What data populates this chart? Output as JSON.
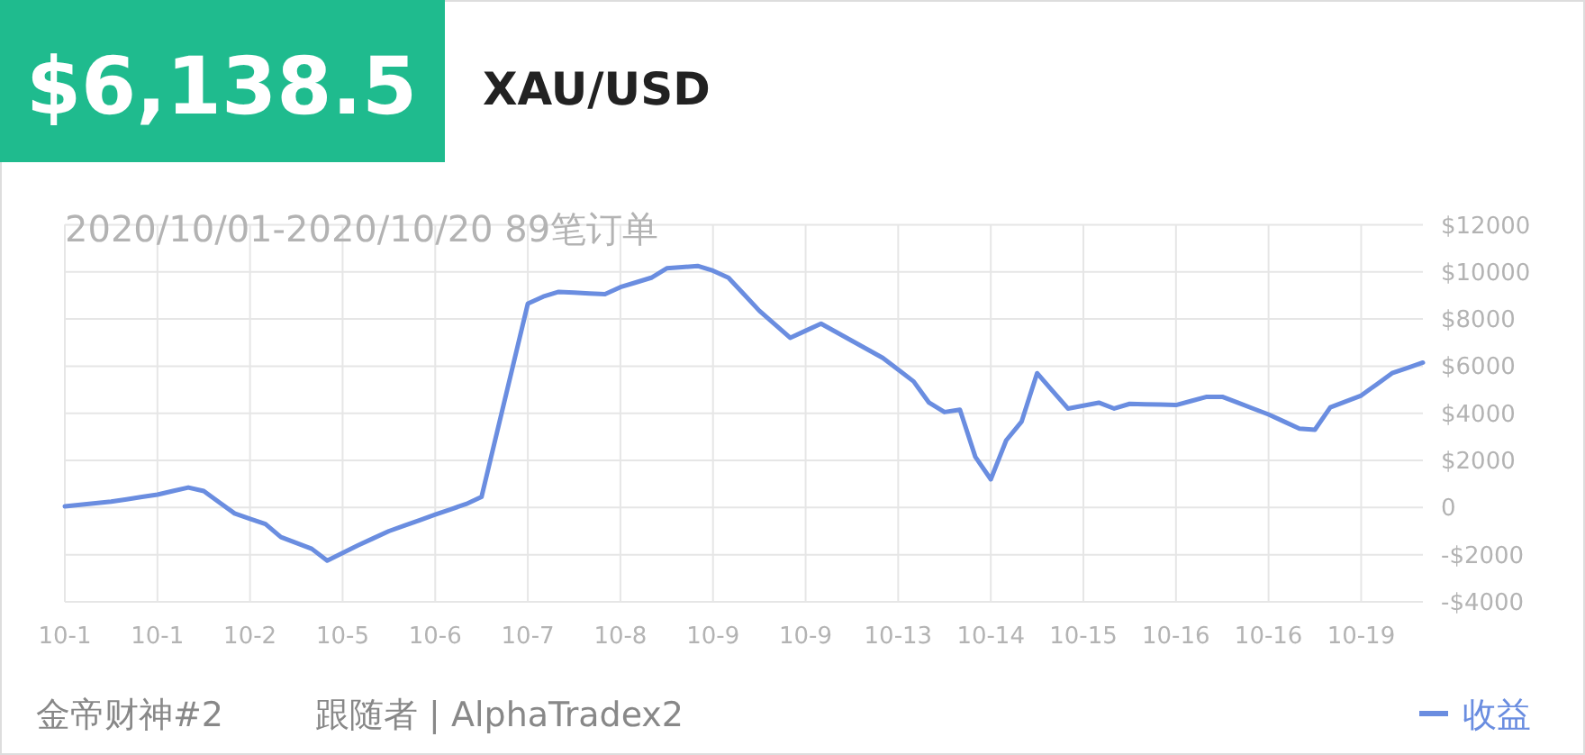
{
  "chart_data": {
    "type": "line",
    "title": "XAU/USD",
    "subtitle": "2020/10/01-2020/10/20 89笔订单",
    "annotations": [
      "$6,138.5",
      "金帝财神#2",
      "跟随者 | AlphaTradex2"
    ],
    "categories": [
      "10-1",
      null,
      null,
      null,
      null,
      null,
      "10-1",
      null,
      null,
      null,
      null,
      null,
      "10-2",
      null,
      null,
      null,
      null,
      null,
      "10-5",
      null,
      null,
      null,
      null,
      null,
      "10-6",
      null,
      null,
      null,
      null,
      null,
      "10-7",
      null,
      null,
      null,
      null,
      null,
      "10-8",
      null,
      null,
      null,
      null,
      null,
      "10-9",
      null,
      null,
      null,
      null,
      null,
      "10-9",
      null,
      null,
      null,
      null,
      null,
      "10-13",
      null,
      null,
      null,
      null,
      null,
      "10-14",
      null,
      null,
      null,
      null,
      null,
      "10-15",
      null,
      null,
      null,
      null,
      null,
      "10-16",
      null,
      null,
      null,
      null,
      null,
      "10-16",
      null,
      null,
      null,
      null,
      null,
      "10-19",
      null,
      null,
      null,
      null
    ],
    "series": [
      {
        "name": "收益",
        "color": "#6a8de0",
        "values": [
          50,
          117,
          183,
          250,
          350,
          450,
          550,
          700,
          850,
          700,
          225,
          -250,
          -475,
          -700,
          -1250,
          -1500,
          -1750,
          -2250,
          -1925,
          -1600,
          -1300,
          -1000,
          -767,
          -533,
          -300,
          -75,
          150,
          450,
          3183,
          5917,
          8650,
          8950,
          9150,
          9117,
          9083,
          9050,
          9350,
          9550,
          9750,
          10150,
          10200,
          10250,
          10050,
          9750,
          9050,
          8350,
          7775,
          7200,
          7500,
          7800,
          7438,
          7075,
          6713,
          6350,
          5850,
          5350,
          4450,
          4050,
          4150,
          2150,
          1200,
          2850,
          3650,
          5700,
          4950,
          4200,
          4325,
          4450,
          4200,
          4400,
          4383,
          4367,
          4350,
          4525,
          4700,
          4700,
          4450,
          4200,
          3950,
          3650,
          3350,
          3300,
          4250,
          4500,
          4750,
          5225,
          5700,
          5925,
          6150
        ]
      }
    ],
    "ylim": [
      -4000,
      12000
    ],
    "yticks": [
      {
        "value": -4000,
        "label": "-$4000"
      },
      {
        "value": -2000,
        "label": "-$2000"
      },
      0,
      {
        "value": 2000,
        "label": "$2000"
      },
      {
        "value": 4000,
        "label": "$4000"
      },
      {
        "value": 6000,
        "label": "$6000"
      },
      {
        "value": 8000,
        "label": "$8000"
      },
      {
        "value": 10000,
        "label": "$10000"
      },
      {
        "value": 12000,
        "label": "$12000"
      }
    ],
    "grid": true,
    "legend": "bottom right",
    "marker": "none",
    "line_style": "solid"
  }
}
